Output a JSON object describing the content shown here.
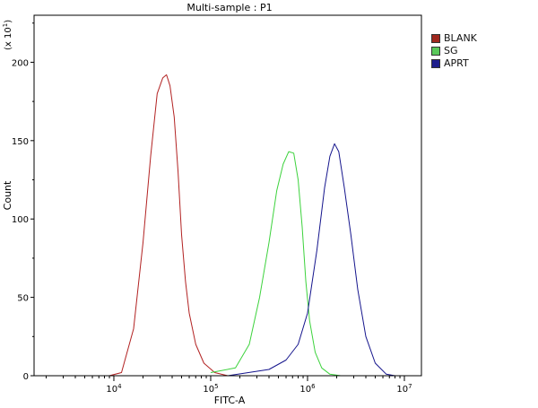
{
  "chart_data": {
    "type": "line",
    "title": "Multi-sample : P1",
    "xlabel": "FITC-A",
    "ylabel": "Count",
    "y_multiplier_label": "(x 10",
    "y_multiplier_exp": "1",
    "x_scale": "log",
    "xlim": [
      1500,
      15000000
    ],
    "ylim": [
      0,
      230
    ],
    "x_ticks": [
      {
        "value": 10000,
        "base": "10",
        "exp": "4"
      },
      {
        "value": 100000,
        "base": "10",
        "exp": "5"
      },
      {
        "value": 1000000,
        "base": "10",
        "exp": "6"
      },
      {
        "value": 10000000,
        "base": "10",
        "exp": "7"
      }
    ],
    "y_ticks": [
      0,
      50,
      100,
      150,
      200
    ],
    "grid": false,
    "legend_position": "top-right",
    "series": [
      {
        "name": "BLANK",
        "color": "#b22222",
        "swatch": "#a0281e",
        "x": [
          9000,
          12000,
          16000,
          20000,
          24000,
          28000,
          32000,
          35000,
          38000,
          42000,
          46000,
          50000,
          55000,
          60000,
          70000,
          85000,
          110000,
          150000
        ],
        "y": [
          0,
          2,
          30,
          85,
          140,
          180,
          190,
          192,
          185,
          165,
          130,
          90,
          60,
          40,
          20,
          8,
          2,
          0
        ]
      },
      {
        "name": "SG",
        "color": "#3cd23c",
        "swatch": "#5ac85a",
        "x": [
          100000,
          180000,
          250000,
          320000,
          400000,
          480000,
          560000,
          640000,
          720000,
          800000,
          880000,
          960000,
          1050000,
          1200000,
          1400000,
          1700000,
          2200000
        ],
        "y": [
          2,
          5,
          20,
          50,
          85,
          118,
          135,
          143,
          142,
          125,
          95,
          60,
          35,
          15,
          5,
          1,
          0
        ]
      },
      {
        "name": "APRT",
        "color": "#14148c",
        "swatch": "#1e1e8c",
        "x": [
          150000,
          400000,
          600000,
          800000,
          1000000,
          1250000,
          1500000,
          1700000,
          1900000,
          2100000,
          2400000,
          2800000,
          3300000,
          4000000,
          5000000,
          6500000,
          8000000
        ],
        "y": [
          0,
          4,
          10,
          20,
          40,
          80,
          120,
          140,
          148,
          143,
          120,
          90,
          55,
          25,
          8,
          1,
          0
        ]
      }
    ]
  }
}
